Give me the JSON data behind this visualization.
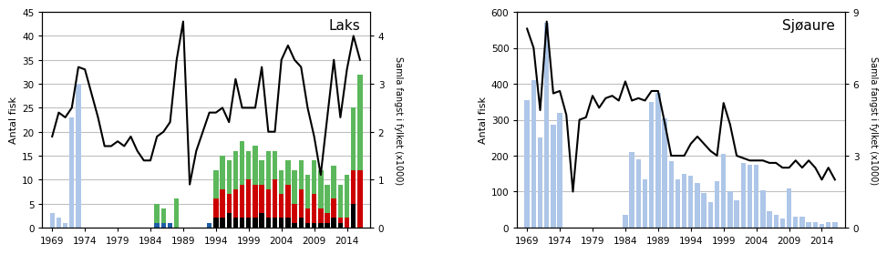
{
  "laks": {
    "title": "Laks",
    "ylabel_left": "Antal fisk",
    "ylabel_right": "Samla fangst i fylket (x1000)",
    "ylim_left": [
      0,
      45
    ],
    "ylim_right": [
      0,
      4.5
    ],
    "yticks_left": [
      0,
      5,
      10,
      15,
      20,
      25,
      30,
      35,
      40,
      45
    ],
    "yticks_right": [
      0,
      1,
      2,
      3,
      4
    ],
    "xticks": [
      1969,
      1974,
      1979,
      1984,
      1989,
      1994,
      1999,
      2004,
      2009,
      2014
    ],
    "bar_years": [
      1969,
      1970,
      1971,
      1972,
      1973,
      1985,
      1986,
      1987,
      1988,
      1993,
      1994,
      1995,
      1996,
      1997,
      1998,
      1999,
      2000,
      2001,
      2002,
      2003,
      2004,
      2005,
      2006,
      2007,
      2008,
      2009,
      2010,
      2011,
      2012,
      2013,
      2014,
      2015,
      2016
    ],
    "bar_black": [
      0,
      0,
      0,
      0,
      0,
      0,
      0,
      0,
      0,
      0,
      2,
      2,
      3,
      2,
      2,
      2,
      2,
      3,
      2,
      2,
      2,
      2,
      1,
      2,
      1,
      1,
      1,
      1,
      2,
      1,
      0,
      5,
      0
    ],
    "bar_red": [
      0,
      0,
      0,
      0,
      0,
      0,
      0,
      0,
      0,
      0,
      4,
      6,
      4,
      6,
      7,
      8,
      7,
      6,
      6,
      8,
      5,
      7,
      4,
      6,
      3,
      6,
      3,
      2,
      4,
      1,
      2,
      7,
      12
    ],
    "bar_green": [
      0,
      0,
      0,
      0,
      0,
      0,
      0,
      0,
      0,
      0,
      6,
      7,
      7,
      8,
      9,
      6,
      8,
      5,
      8,
      6,
      5,
      5,
      7,
      6,
      7,
      7,
      8,
      6,
      7,
      7,
      9,
      13,
      20
    ],
    "bar_blue_light": [
      3,
      2,
      1,
      23,
      30,
      0,
      0,
      0,
      0,
      0,
      0,
      0,
      0,
      0,
      0,
      0,
      0,
      0,
      0,
      0,
      0,
      0,
      0,
      0,
      0,
      0,
      0,
      0,
      0,
      0,
      0,
      0,
      0
    ],
    "bar_blue_dark": [
      0,
      0,
      0,
      0,
      0,
      1,
      1,
      1,
      0,
      1,
      0,
      0,
      0,
      0,
      0,
      0,
      0,
      0,
      0,
      0,
      0,
      0,
      0,
      0,
      0,
      0,
      0,
      0,
      0,
      0,
      0,
      0,
      0
    ],
    "bar_green_early": [
      0,
      0,
      0,
      0,
      0,
      4,
      3,
      0,
      6,
      0,
      0,
      0,
      0,
      0,
      0,
      0,
      0,
      0,
      0,
      0,
      0,
      0,
      0,
      0,
      0,
      0,
      0,
      0,
      0,
      0,
      0,
      0,
      0
    ],
    "line_years": [
      1969,
      1970,
      1971,
      1972,
      1973,
      1974,
      1975,
      1976,
      1977,
      1978,
      1979,
      1980,
      1981,
      1982,
      1983,
      1984,
      1985,
      1986,
      1987,
      1988,
      1989,
      1990,
      1991,
      1992,
      1993,
      1994,
      1995,
      1996,
      1997,
      1998,
      1999,
      2000,
      2001,
      2002,
      2003,
      2004,
      2005,
      2006,
      2007,
      2008,
      2009,
      2010,
      2011,
      2012,
      2013,
      2014,
      2015,
      2016
    ],
    "line_values": [
      1.9,
      2.4,
      2.3,
      2.5,
      3.35,
      3.3,
      2.8,
      2.3,
      1.7,
      1.7,
      1.8,
      1.7,
      1.9,
      1.6,
      1.4,
      1.4,
      1.9,
      2.0,
      2.2,
      3.5,
      4.3,
      0.9,
      1.6,
      2.0,
      2.4,
      2.4,
      2.5,
      2.2,
      3.1,
      2.5,
      2.5,
      2.5,
      3.35,
      2.0,
      2.0,
      3.5,
      3.8,
      3.5,
      3.35,
      2.5,
      1.9,
      1.1,
      2.3,
      3.5,
      2.3,
      3.3,
      4.0,
      3.5
    ]
  },
  "sjøaure": {
    "title": "Sjøaure",
    "ylabel_left": "Antal fisk",
    "ylabel_right": "Samla fangst i fylket (x1000)",
    "ylim_left": [
      0,
      600
    ],
    "ylim_right": [
      0,
      9
    ],
    "yticks_left": [
      0,
      100,
      200,
      300,
      400,
      500,
      600
    ],
    "yticks_right": [
      0,
      3,
      6,
      9
    ],
    "xticks": [
      1969,
      1974,
      1979,
      1984,
      1989,
      1994,
      1999,
      2004,
      2009,
      2014
    ],
    "bar_years": [
      1969,
      1970,
      1971,
      1972,
      1973,
      1974,
      1984,
      1985,
      1986,
      1987,
      1988,
      1989,
      1990,
      1991,
      1992,
      1993,
      1994,
      1995,
      1996,
      1997,
      1998,
      1999,
      2000,
      2001,
      2002,
      2003,
      2004,
      2005,
      2006,
      2007,
      2008,
      2009,
      2010,
      2011,
      2012,
      2013,
      2014,
      2015,
      2016
    ],
    "bar_values": [
      355,
      410,
      250,
      570,
      285,
      320,
      35,
      210,
      190,
      135,
      350,
      375,
      305,
      185,
      135,
      150,
      145,
      125,
      95,
      70,
      130,
      205,
      100,
      75,
      180,
      175,
      175,
      105,
      45,
      35,
      25,
      110,
      30,
      30,
      15,
      15,
      10,
      15,
      15
    ],
    "line_years": [
      1969,
      1970,
      1971,
      1972,
      1973,
      1974,
      1975,
      1976,
      1977,
      1978,
      1979,
      1980,
      1981,
      1982,
      1983,
      1984,
      1985,
      1986,
      1987,
      1988,
      1989,
      1990,
      1991,
      1992,
      1993,
      1994,
      1995,
      1996,
      1997,
      1998,
      1999,
      2000,
      2001,
      2002,
      2003,
      2004,
      2005,
      2006,
      2007,
      2008,
      2009,
      2010,
      2011,
      2012,
      2013,
      2014,
      2015,
      2016
    ],
    "line_values": [
      8.3,
      7.5,
      4.9,
      8.6,
      5.6,
      5.7,
      4.7,
      1.5,
      4.5,
      4.6,
      5.5,
      5.0,
      5.4,
      5.5,
      5.3,
      6.1,
      5.3,
      5.4,
      5.3,
      5.7,
      5.7,
      4.4,
      3.0,
      3.0,
      3.0,
      3.5,
      3.8,
      3.5,
      3.2,
      3.0,
      5.2,
      4.3,
      3.0,
      2.9,
      2.8,
      2.8,
      2.8,
      2.7,
      2.7,
      2.5,
      2.5,
      2.8,
      2.5,
      2.8,
      2.5,
      2.0,
      2.5,
      2.0
    ]
  },
  "bar_color_blue_light": "#AEC6E8",
  "bar_color_blue_dark": "#1F5FA6",
  "bar_color_green": "#5CB85C",
  "bar_color_red": "#CC0000",
  "bar_color_black": "#000000",
  "line_color": "#000000",
  "bg_color": "#FFFFFF",
  "grid_color": "#C0C0C0",
  "xlim": [
    1967.5,
    2017.5
  ]
}
